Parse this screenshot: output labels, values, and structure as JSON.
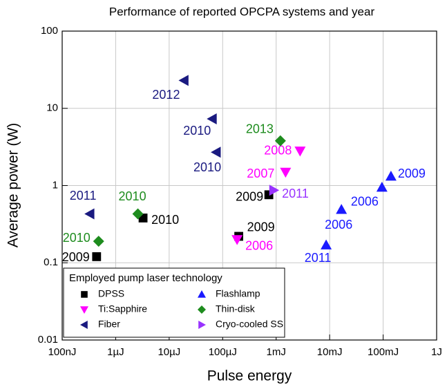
{
  "chart_data": {
    "type": "scatter",
    "title": "Performance of reported OPCPA systems and year",
    "xlabel": "Pulse energy",
    "ylabel": "Average power (W)",
    "xscale": "log",
    "yscale": "log",
    "grid": true,
    "xlim": [
      1e-07,
      1
    ],
    "ylim": [
      0.01,
      100
    ],
    "xticks": [
      {
        "value": 1e-07,
        "label": "100nJ"
      },
      {
        "value": 1e-06,
        "label": "1µJ"
      },
      {
        "value": 1e-05,
        "label": "10µJ"
      },
      {
        "value": 0.0001,
        "label": "100µJ"
      },
      {
        "value": 0.001,
        "label": "1mJ"
      },
      {
        "value": 0.01,
        "label": "10mJ"
      },
      {
        "value": 0.1,
        "label": "100mJ"
      },
      {
        "value": 1,
        "label": "1J"
      }
    ],
    "yticks": [
      0.01,
      0.1,
      1,
      10,
      100
    ],
    "legend_title": "Employed pump laser technology",
    "legend": "lower left",
    "series": [
      {
        "name": "DPSS",
        "color": "#000000",
        "marker": "square",
        "x": [
          4.4e-07,
          3.25e-06,
          0.0002,
          0.00073
        ],
        "values": [
          0.12,
          0.38,
          0.22,
          0.76
        ],
        "labels": [
          "2009",
          "2010",
          "2009",
          "2009"
        ]
      },
      {
        "name": "Flashlamp",
        "color": "#1a1aff",
        "marker": "triangle-up",
        "x": [
          0.0086,
          0.0166,
          0.095,
          0.14
        ],
        "values": [
          0.17,
          0.49,
          0.95,
          1.32
        ],
        "labels": [
          "2011",
          "2006",
          "2006",
          "2009"
        ]
      },
      {
        "name": "Ti:Sapphire",
        "color": "#ff00ff",
        "marker": "triangle-down",
        "x": [
          0.000186,
          0.0015,
          0.0028
        ],
        "values": [
          0.2,
          1.49,
          2.8
        ],
        "labels": [
          "2006",
          "2007",
          "2008"
        ]
      },
      {
        "name": "Thin-disk",
        "color": "#1e8c1e",
        "marker": "diamond",
        "x": [
          4.8e-07,
          2.6e-06,
          0.0012
        ],
        "values": [
          0.19,
          0.43,
          3.8
        ],
        "labels": [
          "2010",
          "2010",
          "2013"
        ]
      },
      {
        "name": "Fiber",
        "color": "#1a1a80",
        "marker": "triangle-left",
        "x": [
          3.3e-07,
          1.9e-05,
          6.4e-05,
          7.6e-05
        ],
        "values": [
          0.43,
          23,
          7.3,
          2.7
        ],
        "labels": [
          "2011",
          "2012",
          "2010",
          "2010"
        ]
      },
      {
        "name": "Cryo-cooled SS",
        "color": "#9933ff",
        "marker": "triangle-right",
        "x": [
          0.0009
        ],
        "values": [
          0.87
        ],
        "labels": [
          "2011"
        ]
      }
    ]
  }
}
